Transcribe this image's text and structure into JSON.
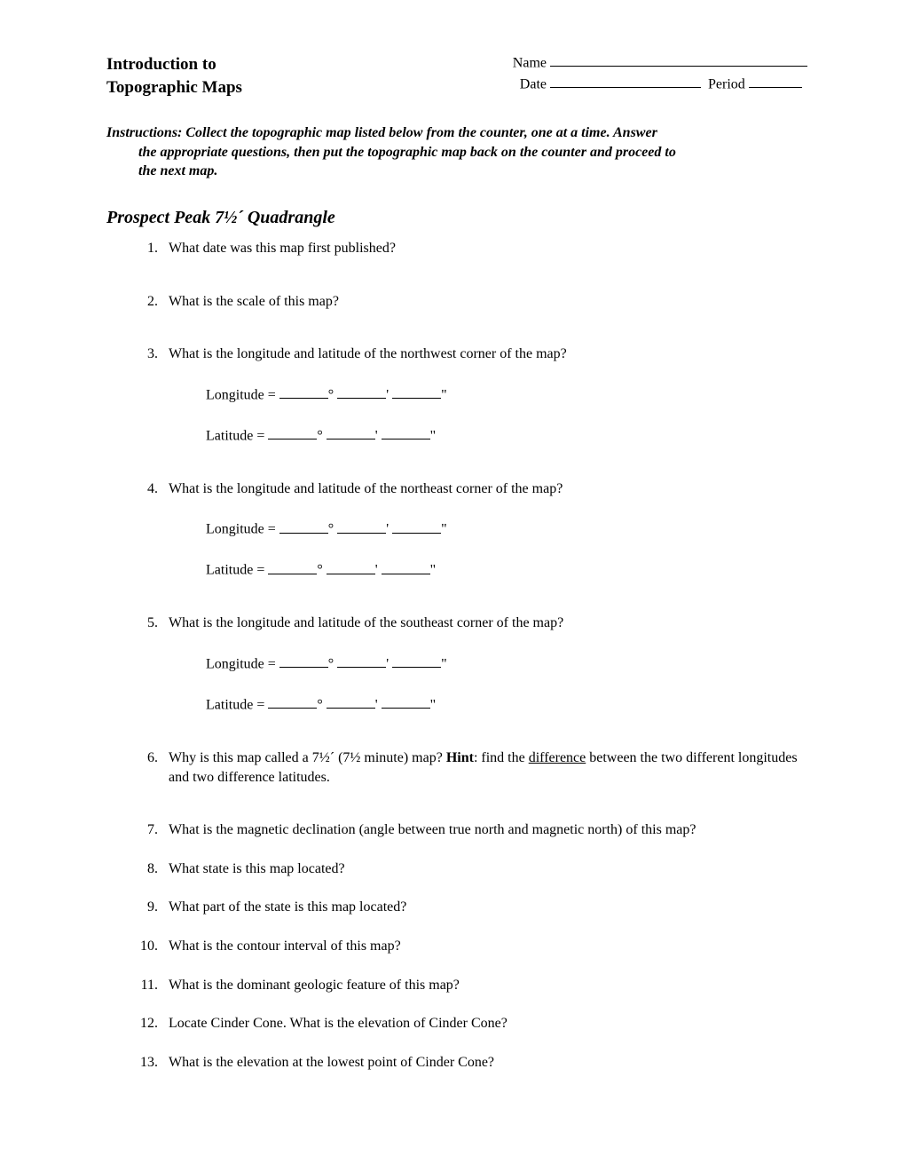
{
  "header": {
    "title_line1": "Introduction to",
    "title_line2": "Topographic Maps",
    "name_label": "Name",
    "date_label": "Date",
    "period_label": "Period"
  },
  "instructions": {
    "prefix": "Instructions:  ",
    "text_line1": "Collect the topographic map listed below from the counter, one at a time.  Answer",
    "text_line2": "the appropriate questions, then put the topographic map back on the counter and proceed to",
    "text_line3": "the next map."
  },
  "section_title": "Prospect Peak 7½´ Quadrangle",
  "coord": {
    "longitude_label": "Longitude = ",
    "latitude_label": "Latitude = ",
    "deg": "°",
    "min": "'",
    "sec": "\""
  },
  "questions": {
    "q1": "What date was this map first published?",
    "q2": "What is the scale of this map?",
    "q3": "What is the longitude and latitude of the northwest corner of the map?",
    "q4": "What is the longitude and latitude of the northeast corner of the map?",
    "q5": "What is the longitude and latitude of the southeast corner of the map?",
    "q6_a": "Why is this map called a 7½´ (7½ minute) map?  ",
    "q6_hint": "Hint",
    "q6_b": ": find the ",
    "q6_diff": "difference",
    "q6_c": " between the two different longitudes and two difference latitudes.",
    "q7": "What is the magnetic declination (angle between true north and magnetic north) of this map?",
    "q8": "What state is this map located?",
    "q9": "What part of the state is this map located?",
    "q10": "What is the contour interval of this map?",
    "q11": "What is the dominant geologic feature of this map?",
    "q12": "Locate Cinder Cone.  What is the elevation of Cinder Cone?",
    "q13": "What is the elevation at the lowest point of Cinder Cone?"
  }
}
